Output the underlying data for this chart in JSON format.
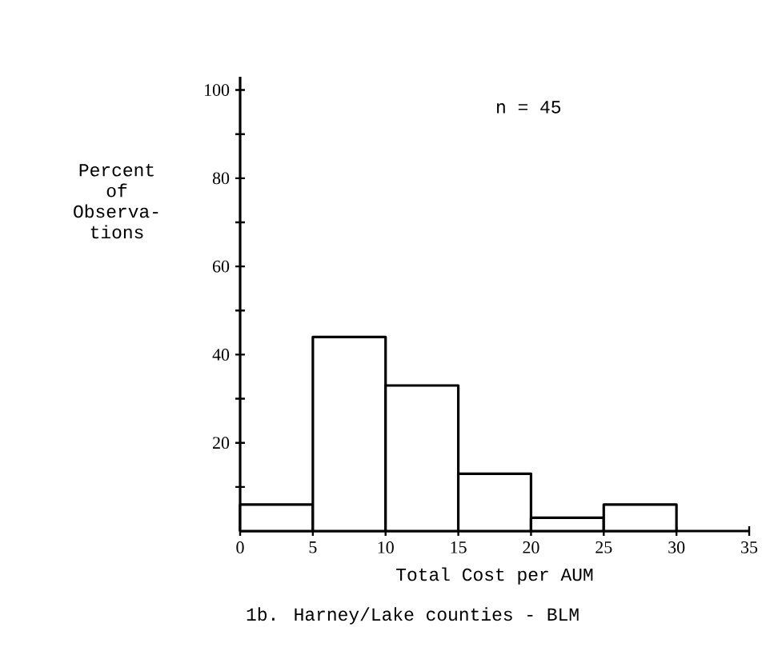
{
  "chart_data": {
    "type": "histogram",
    "title": "1b.  Harney/Lake counties - BLM",
    "xlabel": "Total Cost per AUM",
    "ylabel": "Percent of Observa- tions",
    "annotations": [
      "n = 45"
    ],
    "bins": [
      0,
      5,
      10,
      15,
      20,
      25,
      30
    ],
    "values": [
      6,
      44,
      33,
      13,
      3,
      6
    ],
    "color": "#000000",
    "xlim": [
      0,
      35
    ],
    "xticks": [
      0,
      5,
      10,
      15,
      20,
      25,
      30,
      35
    ],
    "ylim": [
      0,
      103
    ],
    "yticks": [
      {
        "value": 10,
        "label": null
      },
      20,
      {
        "value": 30,
        "label": null
      },
      40,
      {
        "value": 50,
        "label": null
      },
      60,
      {
        "value": 70,
        "label": null
      },
      80,
      {
        "value": 90,
        "label": null
      },
      100
    ]
  }
}
